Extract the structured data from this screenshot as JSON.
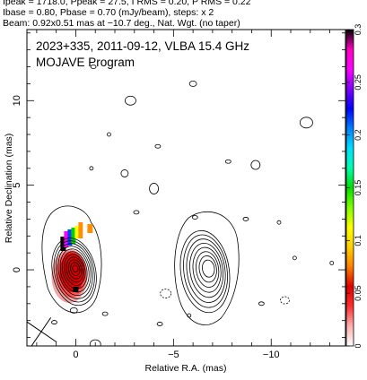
{
  "header": {
    "line1": "Ipeak = 1718.0, Ppeak = 27.5, I RMS = 0.20, P RMS = 0.22",
    "line2": "Ibase = 0.80, Pbase = 0.70 (mJy/beam), steps: x 2",
    "line3": "Beam: 0.92x0.51 mas at −10.7 deg., Nat. Wgt. (no taper)"
  },
  "chart_data": {
    "type": "contour",
    "title": "2023+335, 2011-09-12, VLBA 15.4 GHz",
    "subtitle": "MOJAVE Program",
    "xlabel": "Relative R.A. (mas)",
    "ylabel": "Relative Declination (mas)",
    "xlim": [
      2.5,
      -13.8
    ],
    "ylim": [
      -4.5,
      14.2
    ],
    "x_ticks": [
      0,
      -5,
      -10
    ],
    "x_tick_labels": [
      "0",
      "−5",
      "−10"
    ],
    "y_ticks": [
      0,
      5,
      10
    ],
    "y_tick_labels": [
      "0",
      "5",
      "10"
    ],
    "colorbar": {
      "range": [
        0,
        0.3
      ],
      "ticks": [
        0,
        0.05,
        0.1,
        0.15,
        0.2,
        0.25,
        0.3
      ],
      "tick_labels": [
        "0",
        "0.05",
        "0.1",
        "0.15",
        "0.2",
        "0.25",
        "0.3"
      ],
      "colors": [
        "#ffffff",
        "#ffb0b0",
        "#ff3030",
        "#e00000",
        "#ff8000",
        "#ffd000",
        "#ffff00",
        "#80ff00",
        "#00e000",
        "#00ffb0",
        "#00e0ff",
        "#0080ff",
        "#0000ff",
        "#8000ff",
        "#ff00ff",
        "#ff00c0",
        "#000000"
      ]
    },
    "core": {
      "x": 0.05,
      "y": -0.05,
      "contour_levels": 11
    },
    "secondary_component": {
      "x": -6.6,
      "y": 0.0,
      "contour_levels": 8
    },
    "beam": {
      "major_mas": 0.92,
      "minor_mas": 0.51,
      "pa_deg": -10.7
    }
  }
}
